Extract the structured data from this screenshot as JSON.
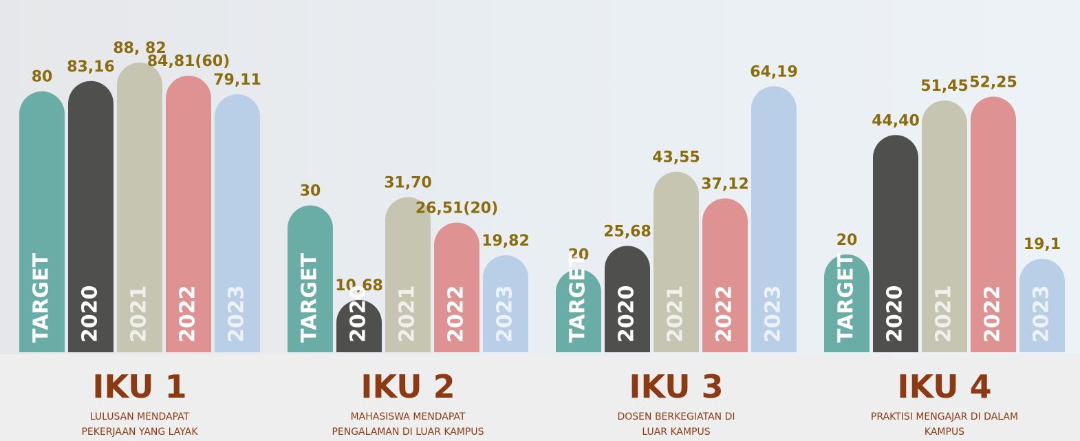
{
  "chart_data": [
    {
      "type": "bar",
      "title": "IKU 1",
      "subtitle": [
        "LULUSAN MENDAPAT",
        "PEKERJAAN YANG LAYAK"
      ],
      "categories": [
        "TARGET",
        "2020",
        "2021",
        "2022",
        "2023"
      ],
      "values": [
        80,
        83.16,
        88.82,
        84.81,
        79.11
      ],
      "value_labels": [
        "80",
        "83,16",
        "88, 82",
        "84,81(60)",
        "79,11"
      ],
      "colors": [
        "#6aada6",
        "#4f4f4d",
        "#c6c5b1",
        "#de9292",
        "#b9cee7"
      ],
      "ylim": [
        0,
        108
      ]
    },
    {
      "type": "bar",
      "title": "IKU 2",
      "subtitle": [
        "MAHASISWA MENDAPAT",
        "PENGALAMAN DI LUAR KAMPUS"
      ],
      "categories": [
        "TARGET",
        "2020",
        "2021",
        "2022",
        "2023"
      ],
      "values": [
        30,
        10.68,
        31.7,
        26.51,
        19.82
      ],
      "value_labels": [
        "30",
        "10,68",
        "31,70",
        "26,51(20)",
        "19,82"
      ],
      "colors": [
        "#6aada6",
        "#4f4f4d",
        "#c6c5b1",
        "#de9292",
        "#b9cee7"
      ],
      "ylim": [
        0,
        72
      ]
    },
    {
      "type": "bar",
      "title": "IKU 3",
      "subtitle": [
        "DOSEN BERKEGIATAN DI",
        "LUAR KAMPUS"
      ],
      "categories": [
        "TARGET",
        "2020",
        "2021",
        "2022",
        "2023"
      ],
      "values": [
        20,
        25.68,
        43.55,
        37.12,
        64.19
      ],
      "value_labels": [
        "20",
        "25,68",
        "43,55",
        "37,12",
        "64,19"
      ],
      "colors": [
        "#6aada6",
        "#4f4f4d",
        "#c6c5b1",
        "#de9292",
        "#b9cee7"
      ],
      "ylim": [
        0,
        85
      ]
    },
    {
      "type": "bar",
      "title": "IKU 4",
      "subtitle": [
        "PRAKTISI MENGAJAR DI DALAM",
        "KAMPUS"
      ],
      "categories": [
        "TARGET",
        "2020",
        "2021",
        "2022",
        "2023"
      ],
      "values": [
        20,
        44.4,
        51.45,
        52.25,
        19.1
      ],
      "value_labels": [
        "20",
        "44,40",
        "51,45",
        "52,25",
        "19,1"
      ],
      "colors": [
        "#6aada6",
        "#4f4f4d",
        "#c6c5b1",
        "#de9292",
        "#b9cee7"
      ],
      "ylim": [
        0,
        72
      ]
    }
  ]
}
